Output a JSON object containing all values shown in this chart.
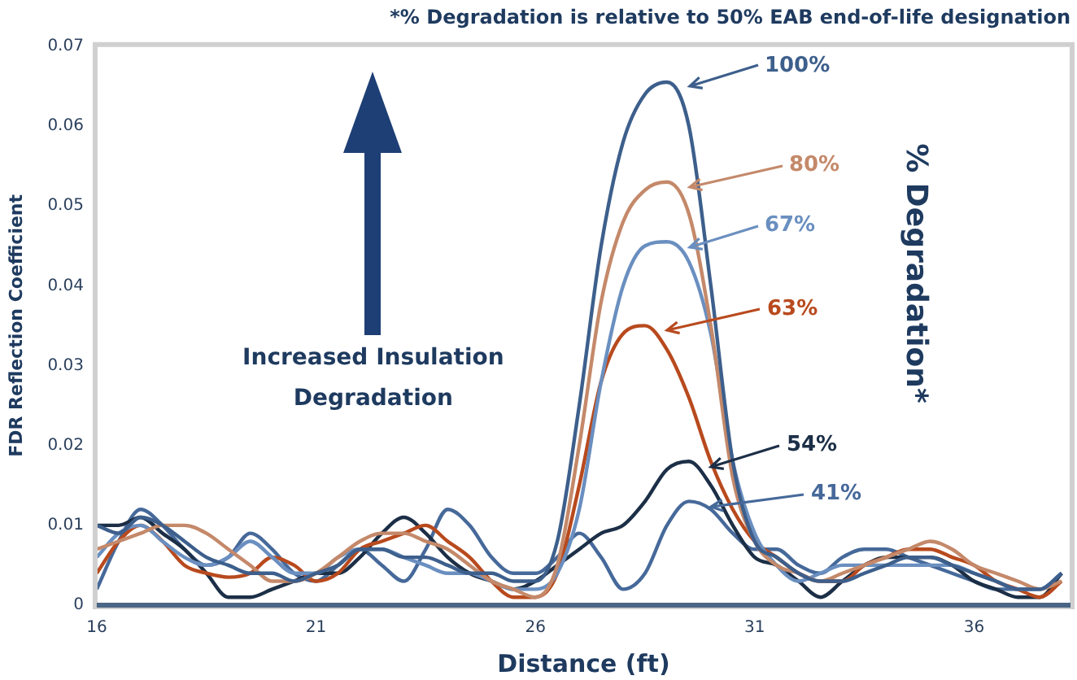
{
  "chart_data": {
    "type": "line",
    "title": "*% Degradation is relative to 50% EAB end-of-life designation",
    "xlabel": "Distance (ft)",
    "ylabel": "FDR Reflection Coefficient",
    "legend_title": "% Degradation*",
    "annotations": [
      "Increased Insulation Degradation"
    ],
    "x": [
      16,
      16.5,
      17,
      17.5,
      18,
      18.5,
      19,
      19.5,
      20,
      20.5,
      21,
      21.5,
      22,
      22.5,
      23,
      23.5,
      24,
      24.5,
      25,
      25.5,
      26,
      26.5,
      27,
      27.5,
      28,
      28.5,
      29,
      29.5,
      30,
      30.5,
      31,
      31.5,
      32,
      32.5,
      33,
      33.5,
      34,
      34.5,
      35,
      35.5,
      36,
      36.5,
      37,
      37.5,
      38
    ],
    "series": [
      {
        "name": "100%",
        "color": "#3d5f8c",
        "values": [
          0.01,
          0.009,
          0.011,
          0.01,
          0.008,
          0.006,
          0.005,
          0.004,
          0.004,
          0.003,
          0.004,
          0.005,
          0.007,
          0.007,
          0.006,
          0.006,
          0.005,
          0.004,
          0.004,
          0.003,
          0.003,
          0.008,
          0.025,
          0.045,
          0.058,
          0.064,
          0.0655,
          0.06,
          0.04,
          0.018,
          0.008,
          0.006,
          0.004,
          0.003,
          0.003,
          0.004,
          0.005,
          0.006,
          0.006,
          0.005,
          0.004,
          0.003,
          0.002,
          0.002,
          0.004
        ]
      },
      {
        "name": "80%",
        "color": "#c4896a",
        "values": [
          0.007,
          0.008,
          0.009,
          0.01,
          0.01,
          0.009,
          0.007,
          0.005,
          0.003,
          0.003,
          0.004,
          0.006,
          0.008,
          0.009,
          0.009,
          0.008,
          0.007,
          0.005,
          0.003,
          0.002,
          0.001,
          0.005,
          0.02,
          0.038,
          0.048,
          0.052,
          0.053,
          0.049,
          0.035,
          0.016,
          0.008,
          0.005,
          0.004,
          0.003,
          0.004,
          0.005,
          0.006,
          0.007,
          0.008,
          0.007,
          0.005,
          0.004,
          0.003,
          0.002,
          0.003
        ]
      },
      {
        "name": "67%",
        "color": "#6a8fc0",
        "values": [
          0.006,
          0.009,
          0.01,
          0.008,
          0.006,
          0.005,
          0.006,
          0.008,
          0.006,
          0.004,
          0.004,
          0.006,
          0.007,
          0.007,
          0.006,
          0.005,
          0.004,
          0.004,
          0.003,
          0.002,
          0.002,
          0.004,
          0.012,
          0.028,
          0.04,
          0.045,
          0.0455,
          0.043,
          0.034,
          0.018,
          0.009,
          0.005,
          0.003,
          0.004,
          0.005,
          0.005,
          0.005,
          0.005,
          0.005,
          0.005,
          0.004,
          0.003,
          0.002,
          0.002,
          0.004
        ]
      },
      {
        "name": "63%",
        "color": "#b84a1e",
        "values": [
          0.004,
          0.008,
          0.01,
          0.008,
          0.005,
          0.004,
          0.0035,
          0.004,
          0.006,
          0.005,
          0.003,
          0.004,
          0.007,
          0.008,
          0.009,
          0.01,
          0.008,
          0.006,
          0.003,
          0.001,
          0.001,
          0.004,
          0.015,
          0.028,
          0.034,
          0.035,
          0.032,
          0.026,
          0.018,
          0.012,
          0.008,
          0.006,
          0.004,
          0.003,
          0.003,
          0.005,
          0.006,
          0.007,
          0.007,
          0.006,
          0.005,
          0.003,
          0.002,
          0.001,
          0.003
        ]
      },
      {
        "name": "54%",
        "color": "#1c2f47",
        "values": [
          0.01,
          0.01,
          0.011,
          0.009,
          0.007,
          0.004,
          0.001,
          0.001,
          0.002,
          0.003,
          0.004,
          0.004,
          0.006,
          0.009,
          0.011,
          0.009,
          0.006,
          0.004,
          0.003,
          0.002,
          0.003,
          0.005,
          0.007,
          0.009,
          0.01,
          0.013,
          0.017,
          0.018,
          0.015,
          0.01,
          0.006,
          0.005,
          0.003,
          0.001,
          0.003,
          0.005,
          0.006,
          0.006,
          0.006,
          0.005,
          0.003,
          0.002,
          0.001,
          0.001,
          0.004
        ]
      },
      {
        "name": "41%",
        "color": "#46699a",
        "values": [
          0.002,
          0.008,
          0.012,
          0.01,
          0.007,
          0.005,
          0.006,
          0.009,
          0.007,
          0.004,
          0.003,
          0.005,
          0.007,
          0.005,
          0.003,
          0.007,
          0.012,
          0.01,
          0.006,
          0.004,
          0.004,
          0.006,
          0.009,
          0.006,
          0.002,
          0.004,
          0.01,
          0.013,
          0.012,
          0.009,
          0.007,
          0.007,
          0.005,
          0.004,
          0.006,
          0.007,
          0.007,
          0.006,
          0.005,
          0.004,
          0.003,
          0.002,
          0.002,
          0.002,
          0.004
        ]
      }
    ],
    "xlim": [
      16,
      38.2
    ],
    "xticks": [
      16,
      21,
      26,
      31,
      36
    ],
    "ylim": [
      0,
      0.07
    ],
    "yticks": [
      0,
      0.01,
      0.02,
      0.03,
      0.04,
      0.05,
      0.06,
      0.07
    ],
    "legend": "right"
  }
}
